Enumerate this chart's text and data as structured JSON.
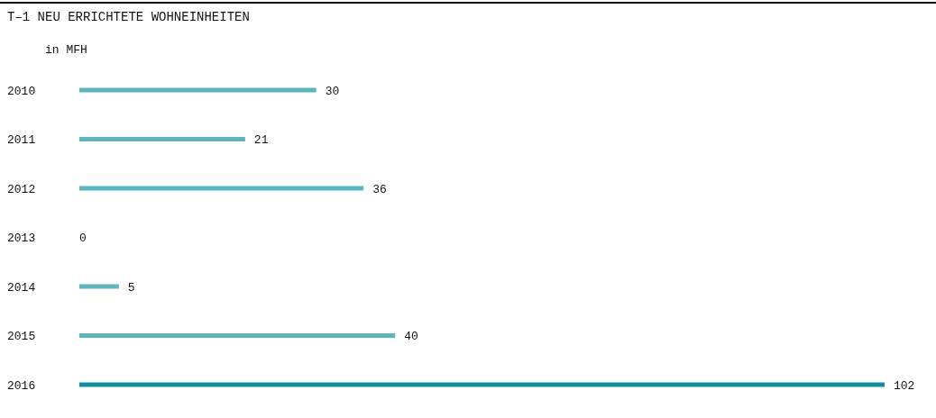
{
  "chart_data": {
    "type": "bar",
    "orientation": "horizontal",
    "title": "T–1  NEU ERRICHTETE WOHNEINHEITEN",
    "subtitle": "in MFH",
    "categories": [
      "2010",
      "2011",
      "2012",
      "2013",
      "2014",
      "2015",
      "2016"
    ],
    "values": [
      30,
      21,
      36,
      0,
      5,
      40,
      102
    ],
    "colors": [
      "#5db5bd",
      "#5db5bd",
      "#5db5bd",
      "#5db5bd",
      "#5db5bd",
      "#5db5bd",
      "#0e8f9b"
    ],
    "xlim": [
      0,
      102
    ],
    "data_labels": true
  }
}
